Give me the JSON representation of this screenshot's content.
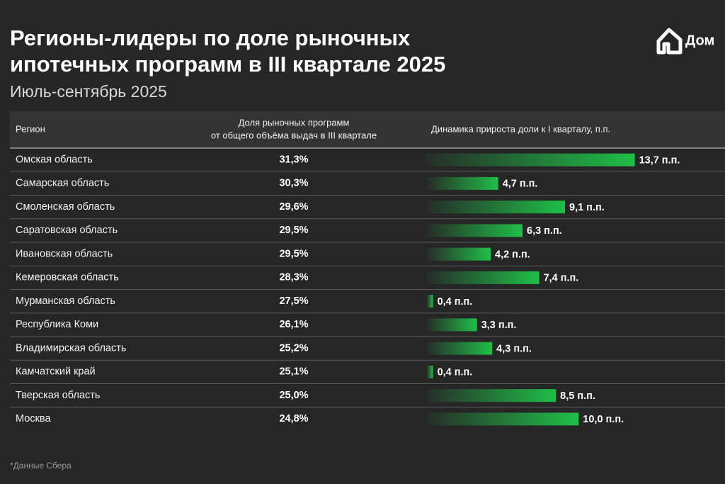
{
  "chart_data": {
    "type": "bar",
    "orientation": "horizontal",
    "title": [
      "Регионы-лидеры по доле рыночных",
      "ипотечных программ в III квартале 2025"
    ],
    "subtitle": "Июль-сентябрь 2025",
    "logo": "Дом",
    "category_label": "Регион",
    "categories": [
      "Омская область",
      "Самарская область",
      "Смоленская область",
      "Саратовская область",
      "Ивановская область",
      "Кемеровская область",
      "Мурманская область",
      "Республика Коми",
      "Владимирская область",
      "Камчатский край",
      "Тверская область",
      "Москва"
    ],
    "series": [
      {
        "name": [
          "Доля рыночных программ",
          "от общего объёма выдач в III квартале"
        ],
        "values": [
          31.3,
          30.3,
          29.6,
          29.5,
          29.5,
          28.3,
          27.5,
          26.1,
          25.2,
          25.1,
          25.0,
          24.8
        ],
        "value_labels": [
          "31,3%",
          "30,3%",
          "29,6%",
          "29,5%",
          "29,5%",
          "28,3%",
          "27,5%",
          "26,1%",
          "25,2%",
          "25,1%",
          "25,0%",
          "24,8%"
        ]
      },
      {
        "name": "Динамика прироста доли к I кварталу, п.п.",
        "color": "#1fbf48",
        "values": [
          13.7,
          4.7,
          9.1,
          6.3,
          4.2,
          7.4,
          0.4,
          3.3,
          4.3,
          0.4,
          8.5,
          10.0
        ],
        "value_labels": [
          "13,7 п.п.",
          "4,7 п.п.",
          "9,1 п.п.",
          "6,3 п.п.",
          "4,2 п.п.",
          "7,4 п.п.",
          "0,4 п.п.",
          "3,3 п.п.",
          "4,3 п.п.",
          "0,4 п.п.",
          "8,5 п.п.",
          "10,0 п.п."
        ]
      }
    ],
    "xlim": [
      0,
      14
    ],
    "footnote": "*Данные Сбера"
  }
}
